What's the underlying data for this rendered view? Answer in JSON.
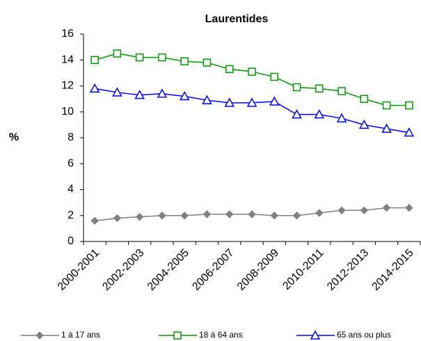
{
  "chart_data": {
    "type": "line",
    "title": "Laurentides",
    "y_label": "%",
    "categories": [
      "2000-2001",
      null,
      "2002-2003",
      null,
      "2004-2005",
      null,
      "2006-2007",
      null,
      "2008-2009",
      null,
      "2010-2011",
      null,
      "2012-2013",
      null,
      "2014-2015"
    ],
    "series": [
      {
        "name": "1 à 17 ans",
        "color": "#808080",
        "marker": "diamond",
        "values": [
          1.6,
          1.8,
          1.9,
          2.0,
          2.0,
          2.1,
          2.1,
          2.1,
          2.0,
          2.0,
          2.2,
          2.4,
          2.4,
          2.6,
          2.6
        ]
      },
      {
        "name": "18 à 64 ans",
        "color": "#009900",
        "marker": "square",
        "values": [
          14.0,
          14.5,
          14.2,
          14.2,
          13.9,
          13.8,
          13.3,
          13.1,
          12.7,
          11.9,
          11.8,
          11.6,
          11.0,
          10.5,
          10.5
        ]
      },
      {
        "name": "65 ans ou plus",
        "color": "#0000ff",
        "marker": "triangle",
        "values": [
          11.8,
          11.5,
          11.3,
          11.4,
          11.2,
          10.9,
          10.7,
          10.7,
          10.8,
          9.8,
          9.8,
          9.5,
          9.0,
          8.7,
          8.4
        ]
      }
    ],
    "ylim": [
      0,
      16
    ],
    "yticks": [
      0,
      2,
      4,
      6,
      8,
      10,
      12,
      14,
      16
    ],
    "legend": "bottom"
  }
}
